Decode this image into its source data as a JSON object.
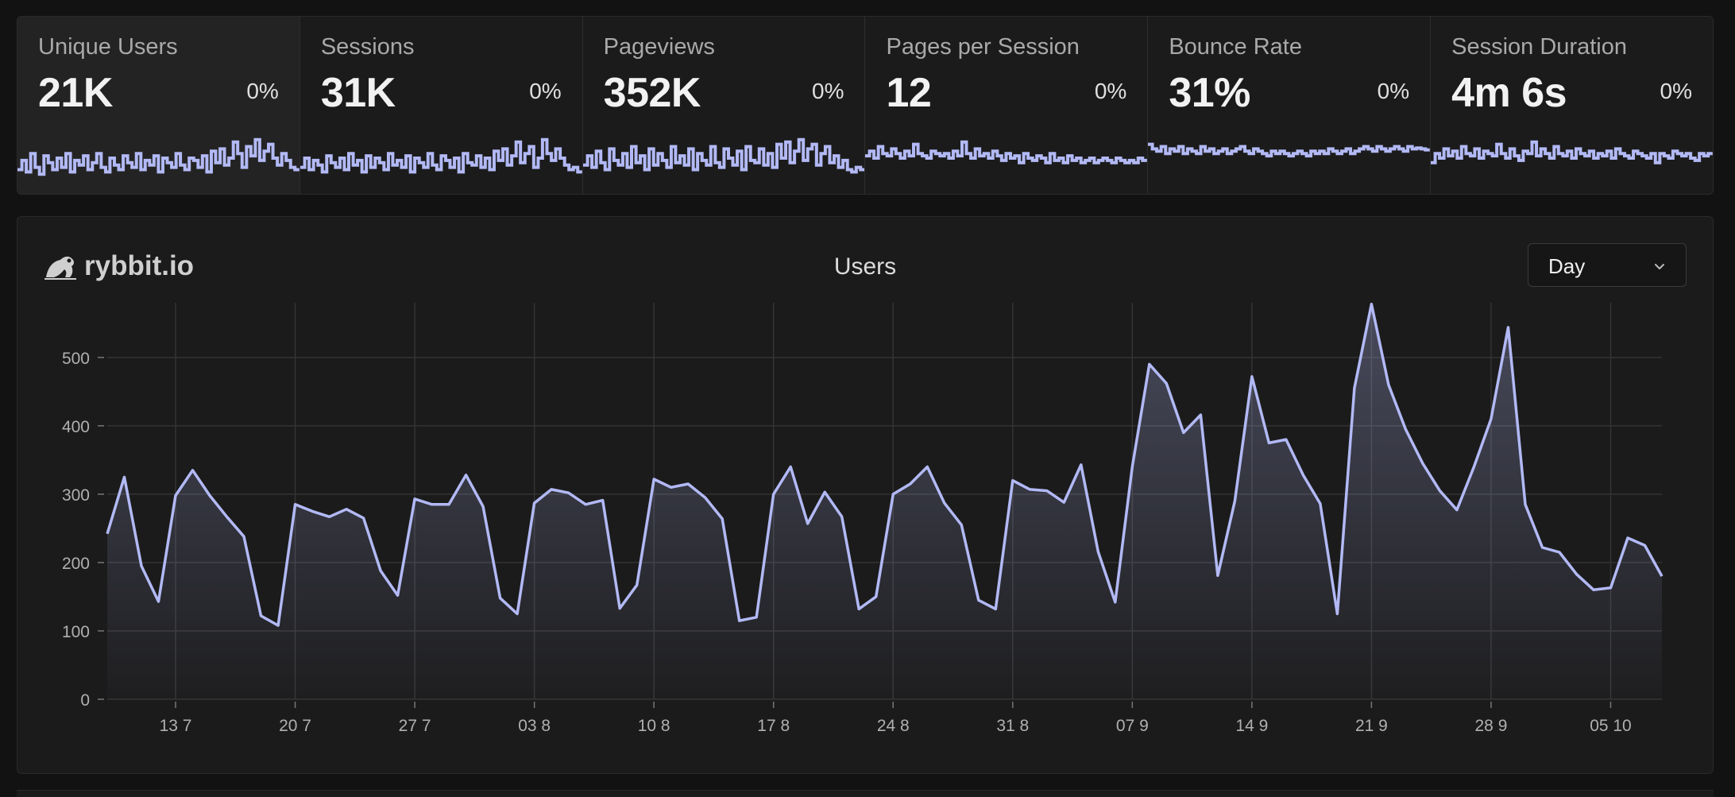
{
  "stats": [
    {
      "label": "Unique Users",
      "value": "21K",
      "change": "0%",
      "active": true,
      "spark": [
        0.25,
        0.45,
        0.2,
        0.6,
        0.3,
        0.15,
        0.55,
        0.4,
        0.25,
        0.5,
        0.3,
        0.6,
        0.2,
        0.45,
        0.35,
        0.55,
        0.25,
        0.4,
        0.6,
        0.3,
        0.2,
        0.5,
        0.35,
        0.25,
        0.55,
        0.4,
        0.3,
        0.6,
        0.25,
        0.45,
        0.35,
        0.55,
        0.2,
        0.5,
        0.4,
        0.3,
        0.6,
        0.35,
        0.25,
        0.5,
        0.45,
        0.3,
        0.55,
        0.2,
        0.65,
        0.4,
        0.7,
        0.35,
        0.5,
        0.85,
        0.6,
        0.3,
        0.75,
        0.55,
        0.9,
        0.45,
        0.65,
        0.8,
        0.5,
        0.35,
        0.6,
        0.45,
        0.3,
        0.25
      ]
    },
    {
      "label": "Sessions",
      "value": "31K",
      "change": "0%",
      "active": false,
      "spark": [
        0.3,
        0.5,
        0.25,
        0.45,
        0.35,
        0.2,
        0.55,
        0.4,
        0.3,
        0.5,
        0.25,
        0.6,
        0.35,
        0.45,
        0.2,
        0.55,
        0.3,
        0.5,
        0.4,
        0.25,
        0.6,
        0.35,
        0.45,
        0.3,
        0.55,
        0.2,
        0.5,
        0.4,
        0.3,
        0.6,
        0.35,
        0.25,
        0.55,
        0.45,
        0.3,
        0.5,
        0.2,
        0.6,
        0.4,
        0.35,
        0.55,
        0.3,
        0.5,
        0.25,
        0.65,
        0.45,
        0.7,
        0.35,
        0.55,
        0.85,
        0.4,
        0.6,
        0.75,
        0.3,
        0.5,
        0.9,
        0.6,
        0.45,
        0.7,
        0.5,
        0.35,
        0.25,
        0.3,
        0.2
      ]
    },
    {
      "label": "Pageviews",
      "value": "352K",
      "change": "0%",
      "active": false,
      "spark": [
        0.35,
        0.55,
        0.3,
        0.65,
        0.4,
        0.25,
        0.7,
        0.45,
        0.35,
        0.6,
        0.3,
        0.75,
        0.4,
        0.55,
        0.25,
        0.7,
        0.35,
        0.6,
        0.45,
        0.3,
        0.75,
        0.4,
        0.55,
        0.35,
        0.7,
        0.25,
        0.6,
        0.45,
        0.35,
        0.75,
        0.4,
        0.3,
        0.7,
        0.5,
        0.35,
        0.65,
        0.25,
        0.75,
        0.45,
        0.4,
        0.7,
        0.35,
        0.6,
        0.3,
        0.8,
        0.5,
        0.85,
        0.4,
        0.65,
        0.9,
        0.45,
        0.7,
        0.8,
        0.35,
        0.6,
        0.75,
        0.4,
        0.55,
        0.3,
        0.45,
        0.25,
        0.2,
        0.3,
        0.25
      ]
    },
    {
      "label": "Pages per Session",
      "value": "12",
      "change": "0%",
      "active": false,
      "spark": [
        0.55,
        0.65,
        0.5,
        0.75,
        0.6,
        0.55,
        0.7,
        0.6,
        0.5,
        0.65,
        0.55,
        0.8,
        0.6,
        0.55,
        0.5,
        0.65,
        0.6,
        0.55,
        0.6,
        0.5,
        0.65,
        0.55,
        0.85,
        0.6,
        0.5,
        0.7,
        0.55,
        0.6,
        0.5,
        0.65,
        0.55,
        0.45,
        0.6,
        0.5,
        0.55,
        0.4,
        0.6,
        0.5,
        0.45,
        0.55,
        0.5,
        0.4,
        0.6,
        0.45,
        0.5,
        0.4,
        0.55,
        0.45,
        0.5,
        0.4,
        0.45,
        0.5,
        0.4,
        0.45,
        0.5,
        0.45,
        0.4,
        0.5,
        0.45,
        0.4,
        0.45,
        0.4,
        0.5,
        0.45
      ]
    },
    {
      "label": "Bounce Rate",
      "value": "31%",
      "change": "0%",
      "active": false,
      "spark": [
        0.8,
        0.7,
        0.65,
        0.75,
        0.6,
        0.7,
        0.65,
        0.75,
        0.6,
        0.7,
        0.65,
        0.6,
        0.75,
        0.65,
        0.7,
        0.6,
        0.65,
        0.7,
        0.6,
        0.65,
        0.7,
        0.75,
        0.65,
        0.6,
        0.7,
        0.65,
        0.6,
        0.55,
        0.65,
        0.6,
        0.65,
        0.6,
        0.55,
        0.6,
        0.65,
        0.6,
        0.55,
        0.65,
        0.6,
        0.65,
        0.6,
        0.7,
        0.65,
        0.6,
        0.65,
        0.7,
        0.6,
        0.65,
        0.7,
        0.75,
        0.7,
        0.65,
        0.75,
        0.7,
        0.65,
        0.7,
        0.75,
        0.7,
        0.65,
        0.75,
        0.7,
        0.72,
        0.7,
        0.68
      ]
    },
    {
      "label": "Session Duration",
      "value": "4m 6s",
      "change": "0%",
      "active": false,
      "spark": [
        0.4,
        0.6,
        0.5,
        0.7,
        0.55,
        0.65,
        0.5,
        0.75,
        0.6,
        0.55,
        0.7,
        0.5,
        0.65,
        0.6,
        0.55,
        0.8,
        0.6,
        0.5,
        0.7,
        0.55,
        0.45,
        0.65,
        0.6,
        0.85,
        0.55,
        0.7,
        0.6,
        0.5,
        0.75,
        0.6,
        0.55,
        0.65,
        0.5,
        0.7,
        0.6,
        0.55,
        0.65,
        0.5,
        0.6,
        0.55,
        0.65,
        0.5,
        0.7,
        0.6,
        0.55,
        0.5,
        0.65,
        0.6,
        0.55,
        0.5,
        0.6,
        0.4,
        0.6,
        0.55,
        0.5,
        0.65,
        0.6,
        0.55,
        0.6,
        0.5,
        0.45,
        0.6,
        0.55,
        0.6
      ]
    }
  ],
  "brand": {
    "name": "rybbit.io"
  },
  "period_select": {
    "value": "Day"
  },
  "colors": {
    "accent": "#b2b9f5",
    "background": "#121212",
    "card": "#1b1b1b",
    "grid": "#333333"
  },
  "chart_data": {
    "type": "area",
    "title": "Users",
    "xlabel": "",
    "ylabel": "",
    "ylim": [
      0,
      580
    ],
    "yticks": [
      0,
      100,
      200,
      300,
      400,
      500
    ],
    "grid": true,
    "x_tick_labels": [
      "13 7",
      "20 7",
      "27 7",
      "03 8",
      "10 8",
      "17 8",
      "24 8",
      "31 8",
      "07 9",
      "14 9",
      "21 9",
      "28 9",
      "05 10"
    ],
    "first_tick_index": 4,
    "tick_step": 7,
    "series": [
      {
        "name": "",
        "values": [
          242,
          325,
          195,
          143,
          298,
          335,
          298,
          267,
          238,
          122,
          108,
          285,
          275,
          267,
          278,
          265,
          188,
          152,
          293,
          285,
          285,
          328,
          282,
          148,
          125,
          287,
          307,
          302,
          285,
          291,
          133,
          167,
          322,
          310,
          315,
          295,
          264,
          115,
          120,
          300,
          340,
          257,
          303,
          267,
          132,
          150,
          300,
          315,
          340,
          287,
          255,
          145,
          132,
          320,
          307,
          305,
          288,
          343,
          216,
          142,
          340,
          490,
          462,
          390,
          416,
          181,
          290,
          472,
          375,
          380,
          328,
          286,
          125,
          455,
          578,
          460,
          395,
          345,
          305,
          277,
          340,
          410,
          544,
          285,
          222,
          215,
          183,
          160,
          163,
          236,
          225,
          180
        ]
      }
    ]
  }
}
